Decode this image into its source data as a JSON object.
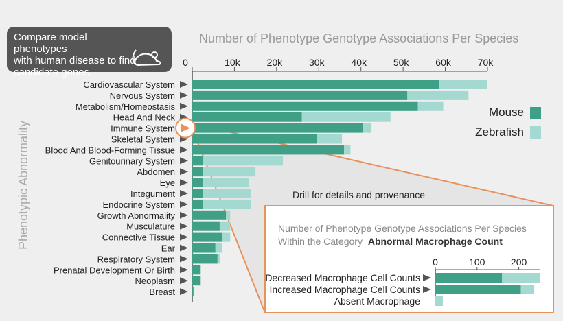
{
  "callout": {
    "text": "Compare model phenotypes\nwith human disease to find\ncandidate genes.",
    "icon": "mouse-icon"
  },
  "drill_label": "Drill for details and provenance",
  "colors": {
    "mouse": "#3f9f87",
    "zebrafish": "#a3d9d0",
    "accent": "#e8915a",
    "text": "#222222",
    "muted": "#999999",
    "background": "#efefef"
  },
  "chart_data": [
    {
      "type": "bar",
      "orientation": "horizontal",
      "stacked": true,
      "title": "Number of Phenotype Genotype Associations Per Species",
      "xlabel": "",
      "ylabel": "Phenotypic Abnormality",
      "xlim": [
        0,
        70000
      ],
      "xticks": [
        0,
        10000,
        20000,
        30000,
        40000,
        50000,
        60000,
        70000
      ],
      "xtick_labels": [
        "0",
        "10k",
        "20k",
        "30k",
        "40k",
        "50k",
        "60k",
        "70k"
      ],
      "legend": {
        "position": "right",
        "entries": [
          "Mouse",
          "Zebrafish"
        ]
      },
      "categories": [
        "Cardiovascular System",
        "Nervous System",
        "Metabolism/Homeostasis",
        "Head And Neck",
        "Immune System",
        "Skeletal System",
        "Blood And Blood-Forming Tissue",
        "Genitourinary System",
        "Abdomen",
        "Eye",
        "Integument",
        "Endocrine System",
        "Growth Abnormality",
        "Musculature",
        "Connective Tissue",
        "Ear",
        "Respiratory System",
        "Prenatal Development Or Birth",
        "Neoplasm",
        "Breast"
      ],
      "series": [
        {
          "name": "Mouse",
          "values": [
            58500,
            51000,
            53500,
            26000,
            40500,
            29500,
            36000,
            2500,
            2500,
            2500,
            2500,
            2500,
            8000,
            6500,
            7000,
            5500,
            6000,
            2000,
            2000,
            300
          ]
        },
        {
          "name": "Zebrafish",
          "values": [
            11500,
            14500,
            6000,
            21000,
            2000,
            6000,
            1500,
            19000,
            12500,
            11000,
            11500,
            11500,
            1000,
            2500,
            2000,
            1500,
            500,
            0,
            0,
            0
          ]
        }
      ],
      "highlighted_category": "Immune System"
    },
    {
      "type": "bar",
      "orientation": "horizontal",
      "stacked": true,
      "title": "Number of Phenotype Genotype Associations Per Species",
      "subtitle_prefix": "Within the Category",
      "subtitle_category": "Abnormal Macrophage Count",
      "xlim": [
        0,
        250
      ],
      "xticks": [
        0,
        100,
        200
      ],
      "xtick_labels": [
        "0",
        "100",
        "200"
      ],
      "categories": [
        "Decreased Macrophage Cell Counts",
        "Increased Macrophage Cell Counts",
        "Absent Macrophage"
      ],
      "series": [
        {
          "name": "Mouse",
          "values": [
            160,
            205,
            0
          ]
        },
        {
          "name": "Zebrafish",
          "values": [
            90,
            32,
            18
          ]
        }
      ]
    }
  ]
}
